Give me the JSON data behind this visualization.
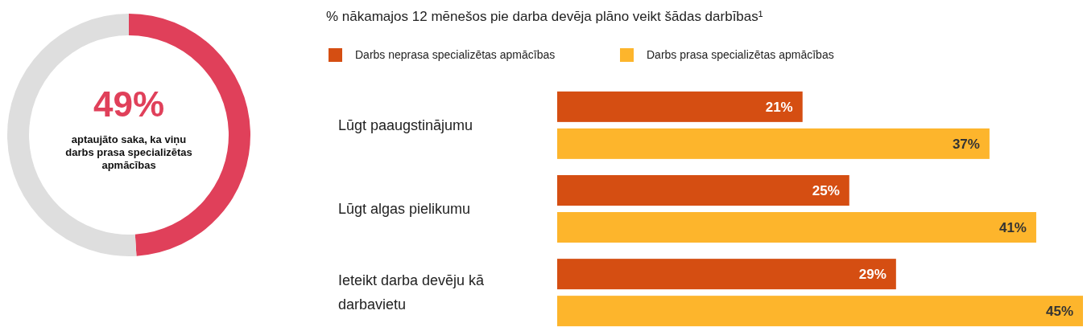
{
  "chart_data": [
    {
      "type": "donut",
      "categories": [
        null,
        null
      ],
      "values": [
        49,
        51
      ],
      "colors": [
        "#e0405a",
        "#dedede"
      ],
      "value_labels": [
        "49%",
        null
      ],
      "annotations": [
        "aptaujāto saka, ka viņu darbs prasa specializētas apmācības"
      ]
    },
    {
      "type": "bar",
      "orientation": "horizontal",
      "title": "% nākamajos 12 mēnešos pie darba devēja plāno veikt šādas darbības¹",
      "categories": [
        "Lūgt paaugstinājumu",
        "Lūgt algas pielikumu",
        "Ieteikt darba devēju kā darbavietu"
      ],
      "legend": "top left",
      "series": [
        {
          "name": "Darbs neprasa specializētas apmācības",
          "color": "#d54e12",
          "values": [
            21,
            25,
            29
          ],
          "value_labels": [
            "21%",
            "25%",
            "29%"
          ]
        },
        {
          "name": "Darbs prasa specializētas apmācības",
          "color": "#fdb52c",
          "values": [
            37,
            41,
            45
          ],
          "value_labels": [
            "37%",
            "41%",
            "45%"
          ]
        }
      ]
    }
  ]
}
